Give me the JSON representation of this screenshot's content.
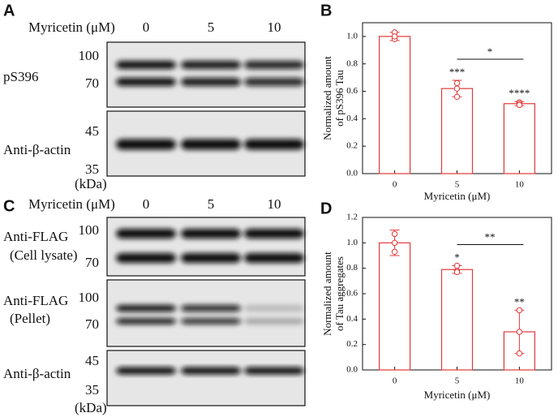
{
  "blots": [
    {
      "panel_label": "A",
      "treatment_label": "Myricetin (μM)",
      "doses": [
        "0",
        "5",
        "10"
      ],
      "unit": "(kDa)",
      "rows": [
        {
          "name": [
            "pS396"
          ],
          "markers": [
            "100",
            "70"
          ]
        },
        {
          "name": [
            "Anti-β-actin"
          ],
          "markers": [
            "45",
            "35"
          ]
        }
      ]
    },
    {
      "panel_label": "C",
      "treatment_label": "Myricetin (μM)",
      "doses": [
        "0",
        "5",
        "10"
      ],
      "unit": "(kDa)",
      "rows": [
        {
          "name": [
            "Anti-FLAG",
            "(Cell lysate)"
          ],
          "markers": [
            "100",
            "70"
          ]
        },
        {
          "name": [
            "Anti-FLAG",
            "(Pellet)"
          ],
          "markers": [
            "100",
            "70"
          ]
        },
        {
          "name": [
            "Anti-β-actin"
          ],
          "markers": [
            "45",
            "35"
          ]
        }
      ]
    }
  ],
  "chart_data": [
    {
      "type": "bar",
      "panel_label": "B",
      "color": "#e03a3a",
      "categories": [
        "0",
        "5",
        "10"
      ],
      "values": [
        1.0,
        0.62,
        0.51
      ],
      "errors": [
        0.03,
        0.06,
        0.015
      ],
      "points": [
        [
          1.03,
          0.98,
          1.0
        ],
        [
          0.66,
          0.62,
          0.56
        ],
        [
          0.52,
          0.51,
          0.5
        ]
      ],
      "significance": [
        null,
        "***",
        "****"
      ],
      "comparison_label": "*",
      "xlabel": "Myricetin (μM)",
      "ylabel": [
        "Normalized amount",
        "of pS396 Tau"
      ],
      "ylim": [
        0,
        1.1
      ],
      "yticks": [
        {
          "value": 0,
          "label": "0.0"
        },
        0.2,
        0.4,
        0.6,
        0.8,
        {
          "value": 1,
          "label": "1.0"
        }
      ]
    },
    {
      "type": "bar",
      "panel_label": "D",
      "color": "#e03a3a",
      "categories": [
        "0",
        "5",
        "10"
      ],
      "values": [
        1.0,
        0.79,
        0.3
      ],
      "errors": [
        0.1,
        0.03,
        0.17
      ],
      "points": [
        [
          1.07,
          0.93,
          1.0
        ],
        [
          0.82,
          0.78,
          0.77
        ],
        [
          0.47,
          0.3,
          0.13
        ]
      ],
      "significance": [
        null,
        "*",
        "**"
      ],
      "comparison_label": "**",
      "xlabel": "Myricetin (μM)",
      "ylabel": [
        "Normalized amount",
        "of Tau aggregates"
      ],
      "ylim": [
        0,
        1.2
      ],
      "yticks": [
        {
          "value": 0,
          "label": "0.0"
        },
        0.2,
        0.4,
        0.6,
        0.8,
        {
          "value": 1,
          "label": "1.0"
        },
        1.2
      ]
    }
  ]
}
